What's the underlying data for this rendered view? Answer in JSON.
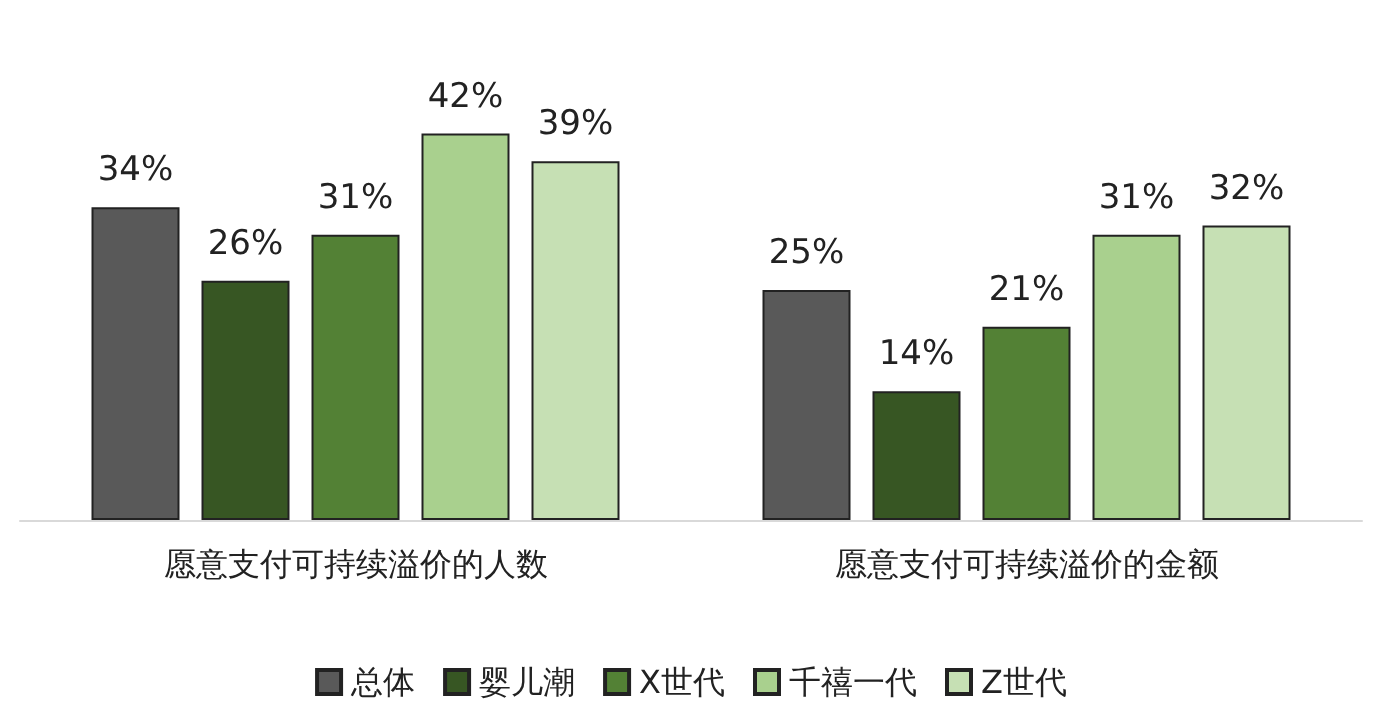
{
  "chart_data": {
    "type": "bar",
    "categories": [
      "愿意支付可持续溢价的人数",
      "愿意支付可持续溢价的金额"
    ],
    "series": [
      {
        "name": "总体",
        "color": "#595959",
        "values": [
          34,
          25
        ],
        "value_labels": [
          "34%",
          "25%"
        ]
      },
      {
        "name": "婴儿潮",
        "color": "#375623",
        "values": [
          26,
          14
        ],
        "value_labels": [
          "26%",
          "14%"
        ]
      },
      {
        "name": "X世代",
        "color": "#538135",
        "values": [
          31,
          21
        ],
        "value_labels": [
          "31%",
          "21%"
        ]
      },
      {
        "name": "千禧一代",
        "color": "#a9d08e",
        "values": [
          42,
          31
        ],
        "value_labels": [
          "42%",
          "31%"
        ]
      },
      {
        "name": "Z世代",
        "color": "#c6e0b4",
        "values": [
          39,
          32
        ],
        "value_labels": [
          "39%",
          "32%"
        ]
      }
    ],
    "legend": "bottom",
    "grid": false
  }
}
